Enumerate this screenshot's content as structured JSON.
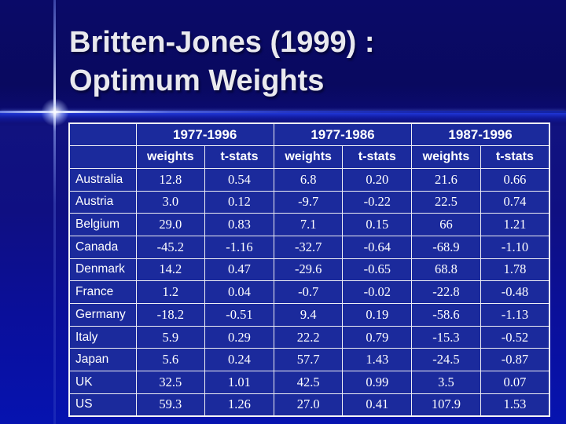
{
  "slide": {
    "title_line1": "Britten-Jones (1999) :",
    "title_line2": "Optimum Weights"
  },
  "table": {
    "corner_label": "",
    "periods": [
      "1977-1996",
      "1977-1986",
      "1987-1996"
    ],
    "sub_columns": [
      "weights",
      "t-stats"
    ],
    "rows": [
      {
        "country": "Australia",
        "values": [
          "12.8",
          "0.54",
          "6.8",
          "0.20",
          "21.6",
          "0.66"
        ]
      },
      {
        "country": "Austria",
        "values": [
          "3.0",
          "0.12",
          "-9.7",
          "-0.22",
          "22.5",
          "0.74"
        ]
      },
      {
        "country": "Belgium",
        "values": [
          "29.0",
          "0.83",
          "7.1",
          "0.15",
          "66",
          "1.21"
        ]
      },
      {
        "country": "Canada",
        "values": [
          "-45.2",
          "-1.16",
          "-32.7",
          "-0.64",
          "-68.9",
          "-1.10"
        ]
      },
      {
        "country": "Denmark",
        "values": [
          "14.2",
          "0.47",
          "-29.6",
          "-0.65",
          "68.8",
          "1.78"
        ]
      },
      {
        "country": "France",
        "values": [
          "1.2",
          "0.04",
          "-0.7",
          "-0.02",
          "-22.8",
          "-0.48"
        ]
      },
      {
        "country": "Germany",
        "values": [
          "-18.2",
          "-0.51",
          "9.4",
          "0.19",
          "-58.6",
          "-1.13"
        ]
      },
      {
        "country": "Italy",
        "values": [
          "5.9",
          "0.29",
          "22.2",
          "0.79",
          "-15.3",
          "-0.52"
        ]
      },
      {
        "country": "Japan",
        "values": [
          "5.6",
          "0.24",
          "57.7",
          "1.43",
          "-24.5",
          "-0.87"
        ]
      },
      {
        "country": "UK",
        "values": [
          "32.5",
          "1.01",
          "42.5",
          "0.99",
          "3.5",
          "0.07"
        ]
      },
      {
        "country": "US",
        "values": [
          "59.3",
          "1.26",
          "27.0",
          "0.41",
          "107.9",
          "1.53"
        ]
      }
    ]
  },
  "colors": {
    "background_top": "#0a0a68",
    "background_bottom": "#0613b0",
    "table_fill": "#1b2a9c",
    "table_border": "#eeeef4",
    "title_text": "#e9e9ee",
    "accent_line": "#eef3ff"
  }
}
